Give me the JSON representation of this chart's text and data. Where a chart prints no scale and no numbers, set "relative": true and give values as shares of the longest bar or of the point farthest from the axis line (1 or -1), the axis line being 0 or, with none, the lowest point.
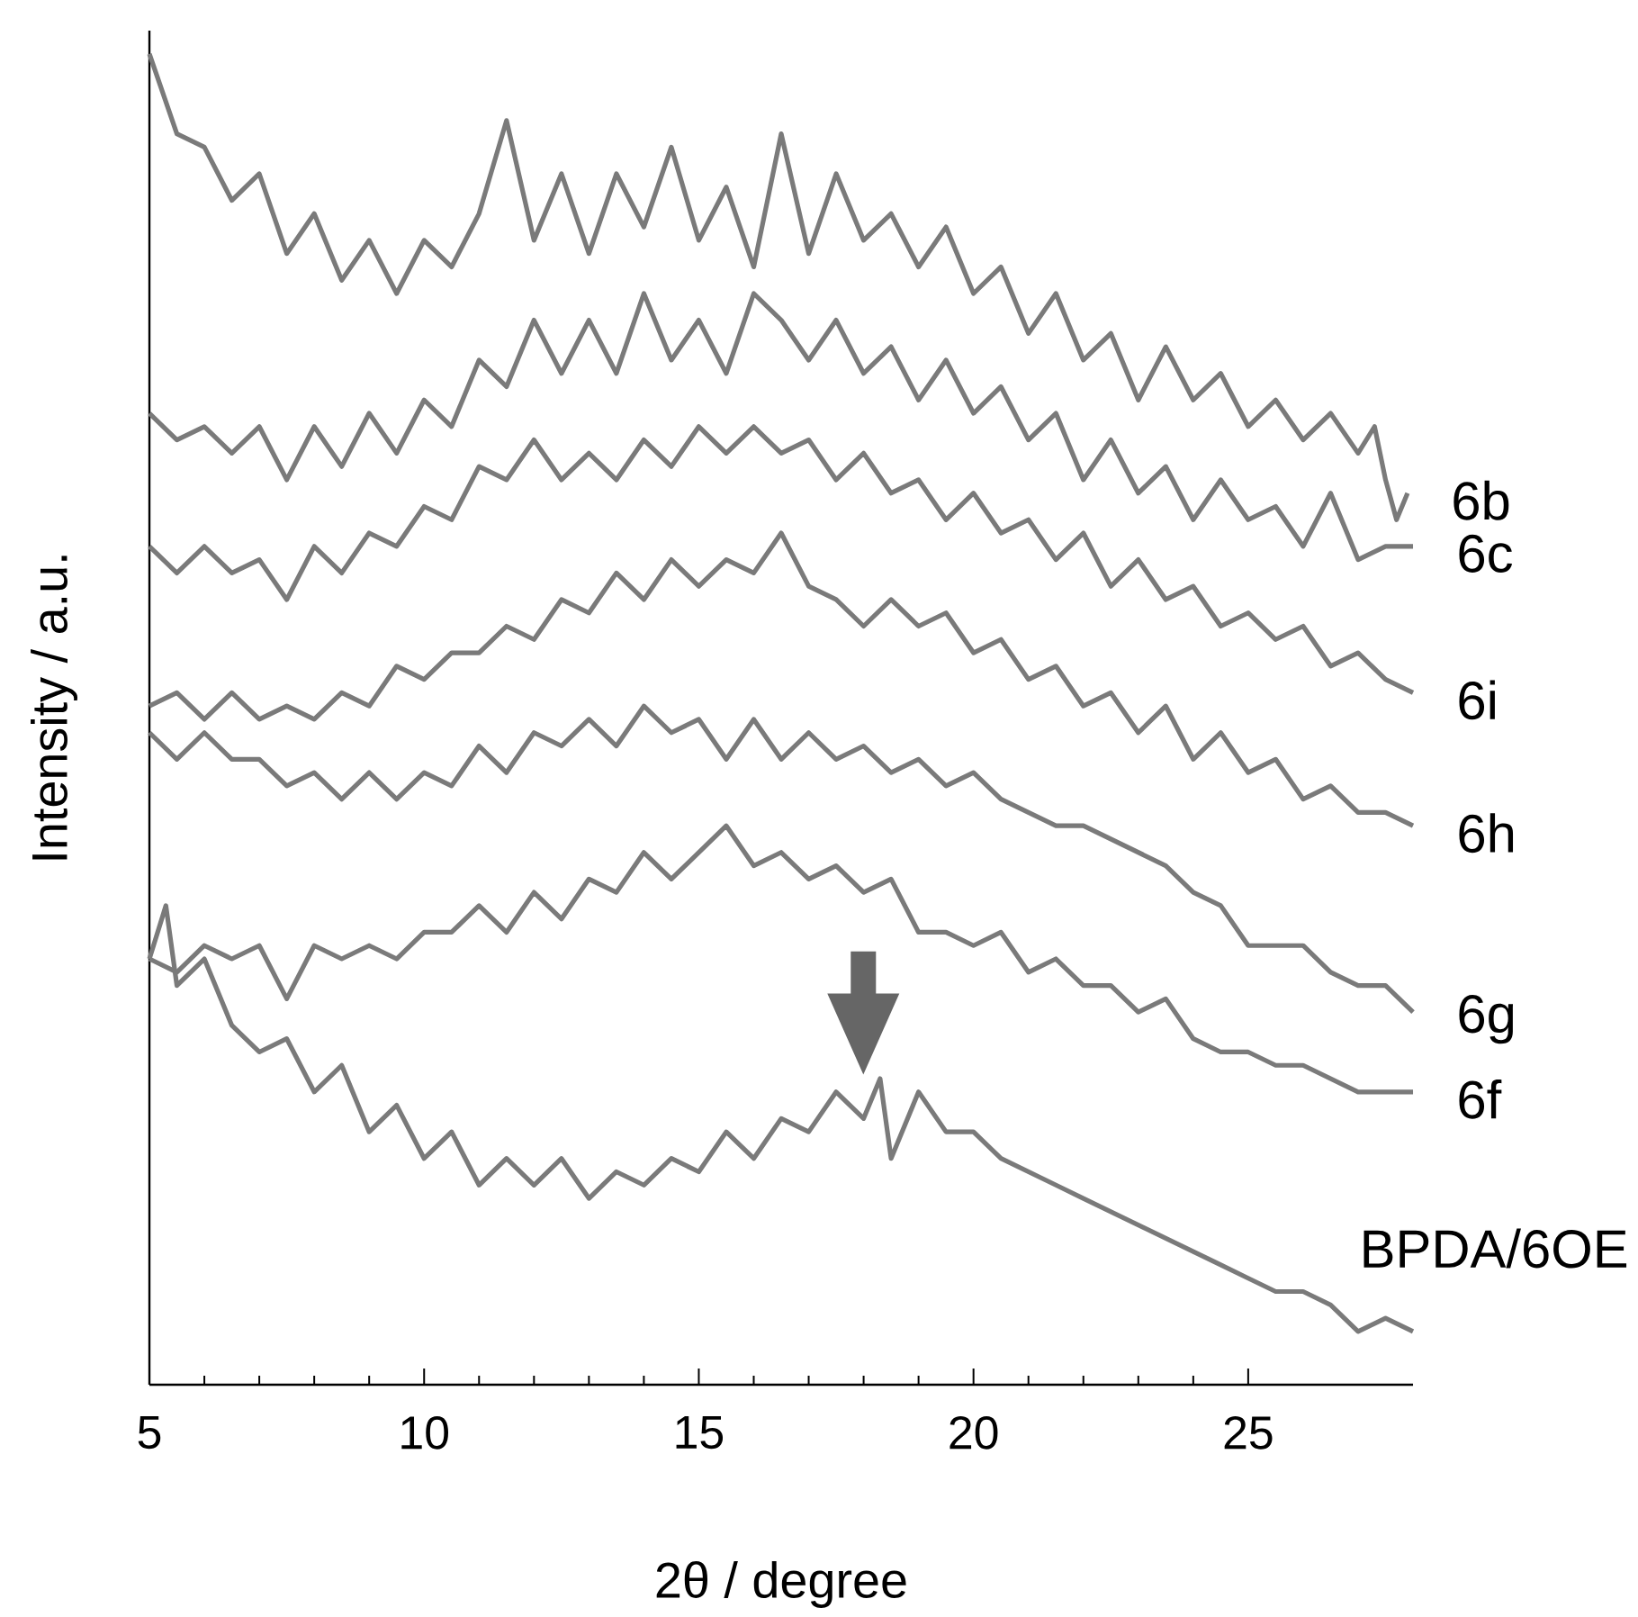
{
  "chart_data": {
    "type": "line",
    "relative": true,
    "xlabel": "2θ / degree",
    "ylabel": "Intensity / a.u.",
    "xlim": [
      5,
      28
    ],
    "xticks": [
      5,
      10,
      15,
      20,
      25
    ],
    "series": [
      {
        "name": "6b",
        "color": "#7a7a7a",
        "x": [
          5,
          5.5,
          6,
          6.5,
          7,
          7.5,
          8,
          8.5,
          9,
          9.5,
          10,
          10.5,
          11,
          11.5,
          12,
          12.5,
          13,
          13.5,
          14,
          14.5,
          15,
          15.5,
          16,
          16.5,
          17,
          17.5,
          18,
          18.5,
          19,
          19.5,
          20,
          20.5,
          21,
          21.5,
          22,
          22.5,
          23,
          23.5,
          24,
          24.5,
          25,
          25.5,
          26,
          26.5,
          27,
          27.3,
          27.5,
          27.7,
          27.9
        ],
        "values": [
          1.0,
          0.94,
          0.93,
          0.89,
          0.91,
          0.85,
          0.88,
          0.83,
          0.86,
          0.82,
          0.86,
          0.84,
          0.88,
          0.95,
          0.86,
          0.91,
          0.85,
          0.91,
          0.87,
          0.93,
          0.86,
          0.9,
          0.84,
          0.94,
          0.85,
          0.91,
          0.86,
          0.88,
          0.84,
          0.87,
          0.82,
          0.84,
          0.79,
          0.82,
          0.77,
          0.79,
          0.74,
          0.78,
          0.74,
          0.76,
          0.72,
          0.74,
          0.71,
          0.73,
          0.7,
          0.72,
          0.68,
          0.65,
          0.67
        ]
      },
      {
        "name": "6c",
        "color": "#7a7a7a",
        "x": [
          5,
          5.5,
          6,
          6.5,
          7,
          7.5,
          8,
          8.5,
          9,
          9.5,
          10,
          10.5,
          11,
          11.5,
          12,
          12.5,
          13,
          13.5,
          14,
          14.5,
          15,
          15.5,
          16,
          16.5,
          17,
          17.5,
          18,
          18.5,
          19,
          19.5,
          20,
          20.5,
          21,
          21.5,
          22,
          22.5,
          23,
          23.5,
          24,
          24.5,
          25,
          25.5,
          26,
          26.5,
          27,
          27.5,
          28
        ],
        "values": [
          0.73,
          0.71,
          0.72,
          0.7,
          0.72,
          0.68,
          0.72,
          0.69,
          0.73,
          0.7,
          0.74,
          0.72,
          0.77,
          0.75,
          0.8,
          0.76,
          0.8,
          0.76,
          0.82,
          0.77,
          0.8,
          0.76,
          0.82,
          0.8,
          0.77,
          0.8,
          0.76,
          0.78,
          0.74,
          0.77,
          0.73,
          0.75,
          0.71,
          0.73,
          0.68,
          0.71,
          0.67,
          0.69,
          0.65,
          0.68,
          0.65,
          0.66,
          0.63,
          0.67,
          0.62,
          0.63,
          0.63
        ]
      },
      {
        "name": "6i",
        "color": "#7a7a7a",
        "x": [
          5,
          5.5,
          6,
          6.5,
          7,
          7.5,
          8,
          8.5,
          9,
          9.5,
          10,
          10.5,
          11,
          11.5,
          12,
          12.5,
          13,
          13.5,
          14,
          14.5,
          15,
          15.5,
          16,
          16.5,
          17,
          17.5,
          18,
          18.5,
          19,
          19.5,
          20,
          20.5,
          21,
          21.5,
          22,
          22.5,
          23,
          23.5,
          24,
          24.5,
          25,
          25.5,
          26,
          26.5,
          27,
          27.5,
          28
        ],
        "values": [
          0.63,
          0.61,
          0.63,
          0.61,
          0.62,
          0.59,
          0.63,
          0.61,
          0.64,
          0.63,
          0.66,
          0.65,
          0.69,
          0.68,
          0.71,
          0.68,
          0.7,
          0.68,
          0.71,
          0.69,
          0.72,
          0.7,
          0.72,
          0.7,
          0.71,
          0.68,
          0.7,
          0.67,
          0.68,
          0.65,
          0.67,
          0.64,
          0.65,
          0.62,
          0.64,
          0.6,
          0.62,
          0.59,
          0.6,
          0.57,
          0.58,
          0.56,
          0.57,
          0.54,
          0.55,
          0.53,
          0.52
        ]
      },
      {
        "name": "6h",
        "color": "#7a7a7a",
        "x": [
          5,
          5.5,
          6,
          6.5,
          7,
          7.5,
          8,
          8.5,
          9,
          9.5,
          10,
          10.5,
          11,
          11.5,
          12,
          12.5,
          13,
          13.5,
          14,
          14.5,
          15,
          15.5,
          16,
          16.5,
          17,
          17.5,
          18,
          18.5,
          19,
          19.5,
          20,
          20.5,
          21,
          21.5,
          22,
          22.5,
          23,
          23.5,
          24,
          24.5,
          25,
          25.5,
          26,
          26.5,
          27,
          27.5,
          28
        ],
        "values": [
          0.51,
          0.52,
          0.5,
          0.52,
          0.5,
          0.51,
          0.5,
          0.52,
          0.51,
          0.54,
          0.53,
          0.55,
          0.55,
          0.57,
          0.56,
          0.59,
          0.58,
          0.61,
          0.59,
          0.62,
          0.6,
          0.62,
          0.61,
          0.64,
          0.6,
          0.59,
          0.57,
          0.59,
          0.57,
          0.58,
          0.55,
          0.56,
          0.53,
          0.54,
          0.51,
          0.52,
          0.49,
          0.51,
          0.47,
          0.49,
          0.46,
          0.47,
          0.44,
          0.45,
          0.43,
          0.43,
          0.42
        ]
      },
      {
        "name": "6g",
        "color": "#7a7a7a",
        "x": [
          5,
          5.5,
          6,
          6.5,
          7,
          7.5,
          8,
          8.5,
          9,
          9.5,
          10,
          10.5,
          11,
          11.5,
          12,
          12.5,
          13,
          13.5,
          14,
          14.5,
          15,
          15.5,
          16,
          16.5,
          17,
          17.5,
          18,
          18.5,
          19,
          19.5,
          20,
          20.5,
          21,
          21.5,
          22,
          22.5,
          23,
          23.5,
          24,
          24.5,
          25,
          25.5,
          26,
          26.5,
          27,
          27.5,
          28
        ],
        "values": [
          0.49,
          0.47,
          0.49,
          0.47,
          0.47,
          0.45,
          0.46,
          0.44,
          0.46,
          0.44,
          0.46,
          0.45,
          0.48,
          0.46,
          0.49,
          0.48,
          0.5,
          0.48,
          0.51,
          0.49,
          0.5,
          0.47,
          0.5,
          0.47,
          0.49,
          0.47,
          0.48,
          0.46,
          0.47,
          0.45,
          0.46,
          0.44,
          0.43,
          0.42,
          0.42,
          0.41,
          0.4,
          0.39,
          0.37,
          0.36,
          0.33,
          0.33,
          0.33,
          0.31,
          0.3,
          0.3,
          0.28
        ]
      },
      {
        "name": "6f",
        "color": "#7a7a7a",
        "x": [
          5,
          5.5,
          6,
          6.5,
          7,
          7.5,
          8,
          8.5,
          9,
          9.5,
          10,
          10.5,
          11,
          11.5,
          12,
          12.5,
          13,
          13.5,
          14,
          14.5,
          15,
          15.5,
          16,
          16.5,
          17,
          17.5,
          18,
          18.5,
          19,
          19.5,
          20,
          20.5,
          21,
          21.5,
          22,
          22.5,
          23,
          23.5,
          24,
          24.5,
          25,
          25.5,
          26,
          26.5,
          27,
          27.5,
          28
        ],
        "values": [
          0.32,
          0.31,
          0.33,
          0.32,
          0.33,
          0.29,
          0.33,
          0.32,
          0.33,
          0.32,
          0.34,
          0.34,
          0.36,
          0.34,
          0.37,
          0.35,
          0.38,
          0.37,
          0.4,
          0.38,
          0.4,
          0.42,
          0.39,
          0.4,
          0.38,
          0.39,
          0.37,
          0.38,
          0.34,
          0.34,
          0.33,
          0.34,
          0.31,
          0.32,
          0.3,
          0.3,
          0.28,
          0.29,
          0.26,
          0.25,
          0.25,
          0.24,
          0.24,
          0.23,
          0.22,
          0.22,
          0.22
        ]
      },
      {
        "name": "BPDA/6OE",
        "color": "#7a7a7a",
        "x": [
          5,
          5.3,
          5.5,
          6,
          6.5,
          7,
          7.5,
          8,
          8.5,
          9,
          9.5,
          10,
          10.5,
          11,
          11.5,
          12,
          12.5,
          13,
          13.5,
          14,
          14.5,
          15,
          15.5,
          16,
          16.5,
          17,
          17.5,
          18,
          18.3,
          18.5,
          19,
          19.5,
          20,
          20.5,
          21,
          21.5,
          22,
          22.5,
          23,
          23.5,
          24,
          24.5,
          25,
          25.5,
          26,
          26.5,
          27,
          27.5,
          28
        ],
        "values": [
          0.32,
          0.36,
          0.3,
          0.32,
          0.27,
          0.25,
          0.26,
          0.22,
          0.24,
          0.19,
          0.21,
          0.17,
          0.19,
          0.15,
          0.17,
          0.15,
          0.17,
          0.14,
          0.16,
          0.15,
          0.17,
          0.16,
          0.19,
          0.17,
          0.2,
          0.19,
          0.22,
          0.2,
          0.23,
          0.17,
          0.22,
          0.19,
          0.19,
          0.17,
          0.16,
          0.15,
          0.14,
          0.13,
          0.12,
          0.11,
          0.1,
          0.09,
          0.08,
          0.07,
          0.07,
          0.06,
          0.04,
          0.05,
          0.04
        ]
      }
    ]
  }
}
